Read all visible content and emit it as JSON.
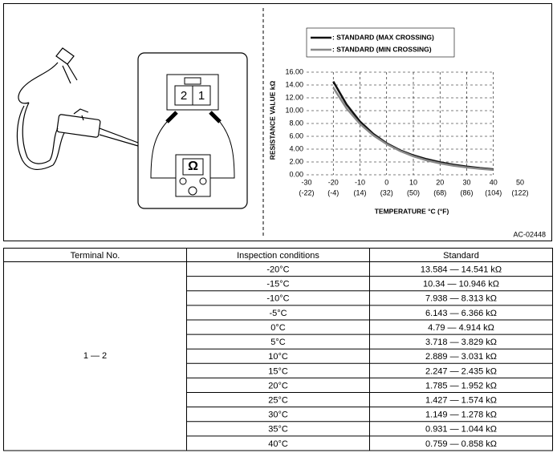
{
  "diagram": {
    "pins": [
      "2",
      "1"
    ],
    "meter": "Ω"
  },
  "chart_data": {
    "type": "line",
    "legend": "top-left",
    "ylabel": "RESISTANCE VALUE  kΩ",
    "xlabel": "TEMPERATURE  °C  (°F)",
    "x": [
      -20,
      -15,
      -10,
      -5,
      0,
      5,
      10,
      15,
      20,
      25,
      30,
      35,
      40
    ],
    "series": [
      {
        "name": ": STANDARD (MAX CROSSING)",
        "color": "#111111",
        "values": [
          14.541,
          10.946,
          8.313,
          6.366,
          4.914,
          3.829,
          3.031,
          2.435,
          1.952,
          1.574,
          1.278,
          1.044,
          0.858
        ]
      },
      {
        "name": ": STANDARD (MIN CROSSING)",
        "color": "#888888",
        "values": [
          13.584,
          10.34,
          7.938,
          6.143,
          4.79,
          3.718,
          2.889,
          2.247,
          1.785,
          1.427,
          1.149,
          0.931,
          0.759
        ]
      }
    ],
    "xlim": [
      -30,
      50
    ],
    "xticks": [
      -30,
      -20,
      -10,
      0,
      10,
      20,
      30,
      40,
      50
    ],
    "xticks_secondary": [
      {
        "value": -30,
        "label": "(-22)"
      },
      {
        "value": -20,
        "label": "(-4)"
      },
      {
        "value": -10,
        "label": "(14)"
      },
      {
        "value": 0,
        "label": "(32)"
      },
      {
        "value": 10,
        "label": "(50)"
      },
      {
        "value": 20,
        "label": "(68)"
      },
      {
        "value": 30,
        "label": "(86)"
      },
      {
        "value": 40,
        "label": "(104)"
      },
      {
        "value": 50,
        "label": "(122)"
      }
    ],
    "ylim": [
      0,
      16
    ],
    "yticks": [
      {
        "value": 0,
        "label": "0.00"
      },
      {
        "value": 2,
        "label": "2.00"
      },
      {
        "value": 4,
        "label": "4.00"
      },
      {
        "value": 6,
        "label": "6.00"
      },
      {
        "value": 8,
        "label": "8.00"
      },
      {
        "value": 10,
        "label": "10.00"
      },
      {
        "value": 12,
        "label": "12.00"
      },
      {
        "value": 14,
        "label": "14.00"
      },
      {
        "value": 16,
        "label": "16.00"
      }
    ],
    "grid": true
  },
  "figure_code": "AC-02448",
  "table": {
    "header": [
      "Terminal No.",
      "Inspection conditions",
      "Standard"
    ],
    "terminal": "1 — 2",
    "rows": [
      [
        "-20°C",
        "13.584 — 14.541 kΩ"
      ],
      [
        "-15°C",
        "10.34 — 10.946 kΩ"
      ],
      [
        "-10°C",
        "7.938 — 8.313 kΩ"
      ],
      [
        "-5°C",
        "6.143 — 6.366 kΩ"
      ],
      [
        "0°C",
        "4.79 — 4.914 kΩ"
      ],
      [
        "5°C",
        "3.718 — 3.829 kΩ"
      ],
      [
        "10°C",
        "2.889 — 3.031 kΩ"
      ],
      [
        "15°C",
        "2.247 — 2.435 kΩ"
      ],
      [
        "20°C",
        "1.785 — 1.952 kΩ"
      ],
      [
        "25°C",
        "1.427 — 1.574 kΩ"
      ],
      [
        "30°C",
        "1.149 — 1.278 kΩ"
      ],
      [
        "35°C",
        "0.931 — 1.044 kΩ"
      ],
      [
        "40°C",
        "0.759 — 0.858 kΩ"
      ]
    ]
  }
}
